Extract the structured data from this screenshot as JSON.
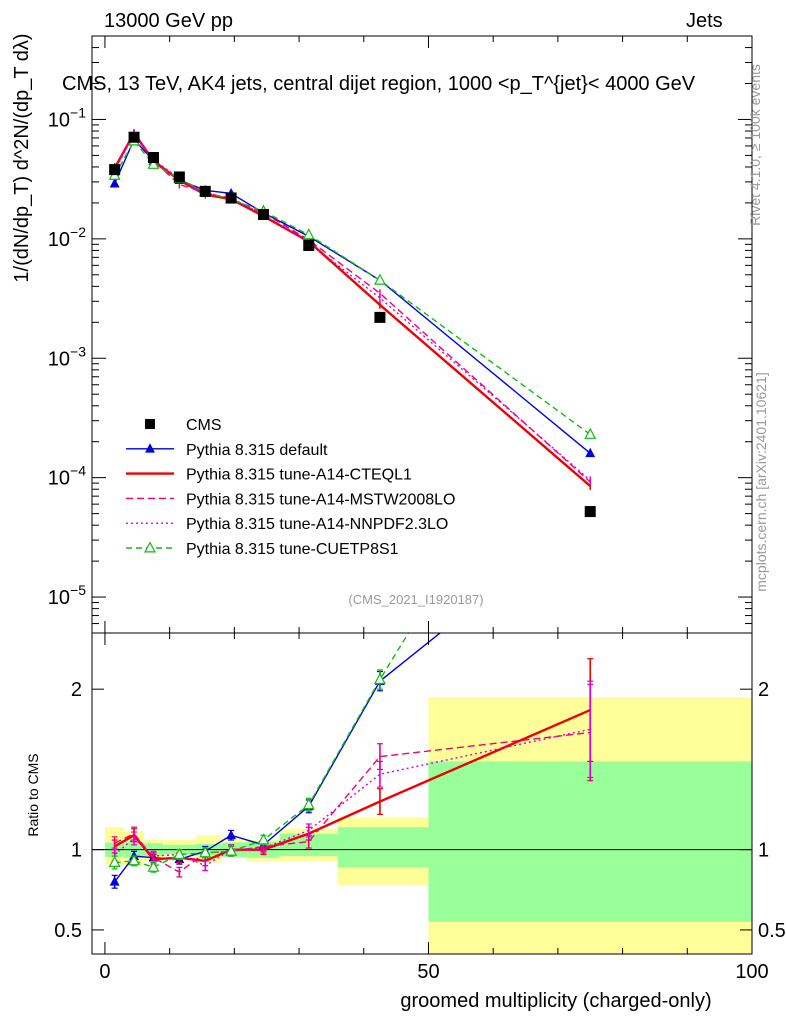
{
  "header": {
    "left": "13000 GeV pp",
    "right": "Jets"
  },
  "side_labels": {
    "rivet": "Rivet 4.1.0, ≥ 100k events",
    "mcplots": "mcplots.cern.ch [arXiv:2401.10621]"
  },
  "chart_data": {
    "type": "line",
    "title": "CMS, 13 TeV, AK4 jets, central dijet region, 1000 <p_T^{jet}< 4000 GeV",
    "watermark": "(CMS_2021_I1920187)",
    "xlabel": "groomed multiplicity (charged-only)",
    "ylabel_main": "1/(dN/dp_T) d^2N/(dp_T dλ)",
    "ylabel_ratio": "Ratio to CMS",
    "xlim": [
      -2,
      100
    ],
    "ylim_main": [
      5e-06,
      0.5
    ],
    "ylim_ratio": [
      0.35,
      2.35
    ],
    "x_ticks": [
      0,
      50,
      100
    ],
    "y_ticks_main": [
      {
        "v": 1e-05,
        "mant": "10",
        "exp": "−5"
      },
      {
        "v": 0.0001,
        "mant": "10",
        "exp": "−4"
      },
      {
        "v": 0.001,
        "mant": "10",
        "exp": "−3"
      },
      {
        "v": 0.01,
        "mant": "10",
        "exp": "−2"
      },
      {
        "v": 0.1,
        "mant": "10",
        "exp": "−1"
      }
    ],
    "y_ticks_ratio": [
      {
        "v": 0.5,
        "label": "0.5"
      },
      {
        "v": 1,
        "label": "1"
      },
      {
        "v": 2,
        "label": "2"
      }
    ],
    "x": [
      1.5,
      4.5,
      7.5,
      11.5,
      15.5,
      19.5,
      24.5,
      31.5,
      42.5,
      75
    ],
    "bins": [
      [
        0,
        3
      ],
      [
        3,
        6
      ],
      [
        6,
        9
      ],
      [
        9,
        14
      ],
      [
        14,
        18
      ],
      [
        18,
        22
      ],
      [
        22,
        27
      ],
      [
        27,
        36
      ],
      [
        36,
        50
      ],
      [
        50,
        100
      ]
    ],
    "band_inner": [
      1.045,
      1.05,
      1.04,
      1.03,
      1.035,
      1.045,
      1.05,
      1.1,
      1.14,
      1.55
    ],
    "band_inner_low": [
      0.955,
      0.95,
      0.96,
      0.97,
      0.965,
      0.955,
      0.95,
      0.96,
      0.89,
      0.55
    ],
    "band_outer": [
      1.14,
      1.11,
      1.06,
      1.06,
      1.09,
      1.07,
      1.06,
      1.13,
      1.2,
      1.95
    ],
    "band_outer_low": [
      0.91,
      0.9,
      0.93,
      0.96,
      0.92,
      0.95,
      0.93,
      0.93,
      0.78,
      0.35
    ],
    "data": {
      "name": "CMS",
      "values": [
        0.038,
        0.071,
        0.048,
        0.033,
        0.025,
        0.022,
        0.016,
        0.0088,
        0.0022,
        5.2e-05
      ]
    },
    "series": [
      {
        "name": "Pythia 8.315 default",
        "color": "#0000dd",
        "dash": "",
        "marker": "triangle-filled",
        "values": [
          0.029,
          0.068,
          0.045,
          0.031,
          0.0255,
          0.024,
          0.0165,
          0.0105,
          0.0045,
          0.00016
        ],
        "ratio": [
          0.8,
          0.96,
          0.95,
          0.94,
          0.99,
          1.09,
          1.03,
          1.27,
          2.05,
          3.1
        ],
        "err": [
          0.04,
          0.03,
          0.03,
          0.03,
          0.03,
          0.03,
          0.03,
          0.04,
          0.06,
          0.3
        ]
      },
      {
        "name": "Pythia 8.315 tune-A14-CTEQL1",
        "color": "#ee0000",
        "dash": "",
        "marker": "none",
        "values": [
          0.039,
          0.077,
          0.045,
          0.031,
          0.0235,
          0.0215,
          0.0155,
          0.0095,
          0.0028,
          8.5e-05
        ],
        "ratio": [
          1.02,
          1.09,
          0.94,
          0.95,
          0.93,
          1.0,
          1.0,
          1.1,
          1.3,
          1.87
        ],
        "err": [
          0.04,
          0.04,
          0.03,
          0.03,
          0.03,
          0.03,
          0.03,
          0.04,
          0.08,
          0.32
        ]
      },
      {
        "name": "Pythia 8.315 tune-A14-MSTW2008LO",
        "color": "#ee0077",
        "dash": "7,4",
        "marker": "none",
        "values": [
          0.04,
          0.077,
          0.045,
          0.0285,
          0.0245,
          0.0215,
          0.0165,
          0.0098,
          0.0035,
          9.2e-05
        ],
        "ratio": [
          1.04,
          1.1,
          0.95,
          0.86,
          0.98,
          0.99,
          1.02,
          1.05,
          1.58,
          1.73
        ],
        "err": [
          0.04,
          0.04,
          0.03,
          0.03,
          0.03,
          0.03,
          0.03,
          0.04,
          0.08,
          0.3
        ]
      },
      {
        "name": "Pythia 8.315 tune-A14-NNPDF2.3LO",
        "color": "#dd00dd",
        "dash": "2,3",
        "marker": "none",
        "values": [
          0.037,
          0.076,
          0.046,
          0.032,
          0.024,
          0.022,
          0.016,
          0.0093,
          0.0032,
          9.5e-05
        ],
        "ratio": [
          0.97,
          1.07,
          0.96,
          0.97,
          0.9,
          1.0,
          1.01,
          1.12,
          1.47,
          1.75
        ],
        "err": [
          0.04,
          0.04,
          0.03,
          0.03,
          0.03,
          0.03,
          0.03,
          0.04,
          0.08,
          0.3
        ]
      },
      {
        "name": "Pythia 8.315 tune-CUETP8S1",
        "color": "#11bb11",
        "dash": "6,4",
        "marker": "triangle-open",
        "values": [
          0.034,
          0.066,
          0.042,
          0.032,
          0.0245,
          0.0215,
          0.017,
          0.0108,
          0.0045,
          0.00023
        ],
        "ratio": [
          0.92,
          0.93,
          0.89,
          0.97,
          0.98,
          0.99,
          1.06,
          1.28,
          2.06,
          4.2
        ],
        "err": [
          0.04,
          0.03,
          0.03,
          0.03,
          0.03,
          0.03,
          0.03,
          0.04,
          0.06,
          0.35
        ]
      }
    ]
  }
}
